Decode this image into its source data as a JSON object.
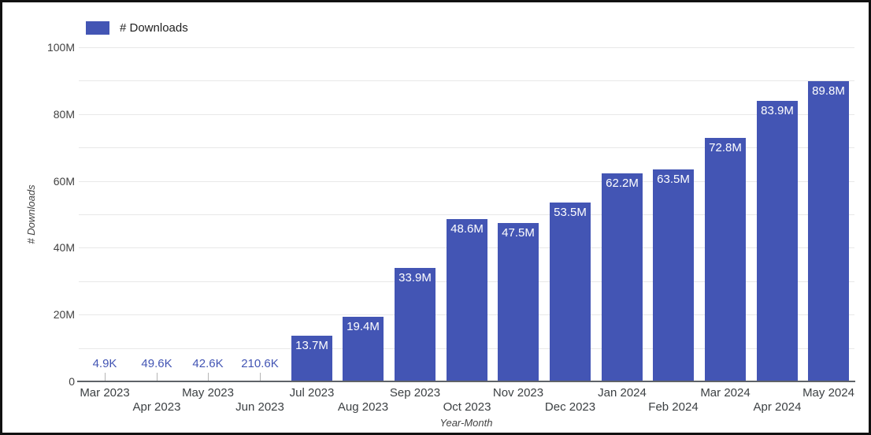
{
  "legend": {
    "label": "# Downloads",
    "swatch_color": "#4355b4"
  },
  "chart_data": {
    "type": "bar",
    "title": "",
    "xlabel": "Year-Month",
    "ylabel": "# Downloads",
    "categories": [
      "Mar 2023",
      "Apr 2023",
      "May 2023",
      "Jun 2023",
      "Jul 2023",
      "Aug 2023",
      "Sep 2023",
      "Oct 2023",
      "Nov 2023",
      "Dec 2023",
      "Jan 2024",
      "Feb 2024",
      "Mar 2024",
      "Apr 2024",
      "May 2024"
    ],
    "values": [
      4900,
      49600,
      42600,
      210600,
      13700000,
      19400000,
      33900000,
      48600000,
      47500000,
      53500000,
      62200000,
      63500000,
      72800000,
      83900000,
      89800000
    ],
    "value_labels": [
      "4.9K",
      "49.6K",
      "42.6K",
      "210.6K",
      "13.7M",
      "19.4M",
      "33.9M",
      "48.6M",
      "47.5M",
      "53.5M",
      "62.2M",
      "63.5M",
      "72.8M",
      "83.9M",
      "89.8M"
    ],
    "series_name": "# Downloads",
    "ylim": [
      0,
      100000000
    ],
    "yticks": [
      {
        "value": 0,
        "label": "0"
      },
      {
        "value": 20000000,
        "label": "20M"
      },
      {
        "value": 40000000,
        "label": "40M"
      },
      {
        "value": 60000000,
        "label": "60M"
      },
      {
        "value": 80000000,
        "label": "80M"
      },
      {
        "value": 100000000,
        "label": "100M"
      }
    ],
    "gridline_step": 10000000,
    "grid": true,
    "legend_position": "top-left",
    "bar_color": "#4355b4",
    "label_color_inside": "#ffffff",
    "label_color_outside": "#4355b4"
  }
}
